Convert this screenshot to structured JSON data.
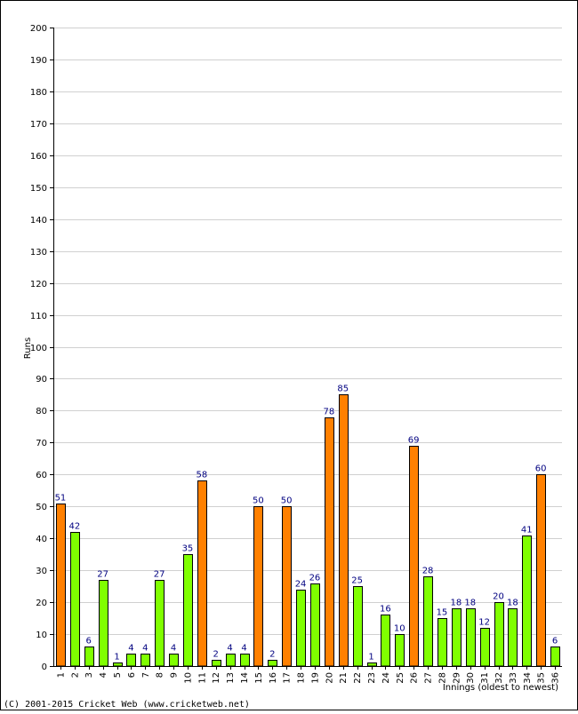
{
  "chart_data": {
    "type": "bar",
    "title": "",
    "xlabel": "Innings (oldest to newest)",
    "ylabel": "Runs",
    "ylim": [
      0,
      200
    ],
    "y_ticks": [
      0,
      10,
      20,
      30,
      40,
      50,
      60,
      70,
      80,
      90,
      100,
      110,
      120,
      130,
      140,
      150,
      160,
      170,
      180,
      190,
      200
    ],
    "grid": true,
    "categories": [
      "1",
      "2",
      "3",
      "4",
      "5",
      "6",
      "7",
      "8",
      "9",
      "10",
      "11",
      "12",
      "13",
      "14",
      "15",
      "16",
      "17",
      "18",
      "19",
      "20",
      "21",
      "22",
      "23",
      "24",
      "25",
      "26",
      "27",
      "28",
      "29",
      "30",
      "31",
      "32",
      "33",
      "34",
      "35",
      "36"
    ],
    "values": [
      51,
      42,
      6,
      27,
      1,
      4,
      4,
      27,
      4,
      35,
      58,
      2,
      4,
      4,
      50,
      2,
      50,
      24,
      26,
      78,
      85,
      25,
      1,
      16,
      10,
      69,
      28,
      15,
      18,
      18,
      12,
      20,
      18,
      41,
      60,
      6
    ],
    "bar_colors": {
      "not_out": "#80ff00",
      "out": "#ff8000"
    },
    "highlight_rule": "innings of 50 or more shown in orange",
    "data_label_color": "#000080",
    "grid_color": "#d0d0d0",
    "border_color": "#000000"
  },
  "footer": {
    "copyright": "(C) 2001-2015 Cricket Web (www.cricketweb.net)"
  }
}
